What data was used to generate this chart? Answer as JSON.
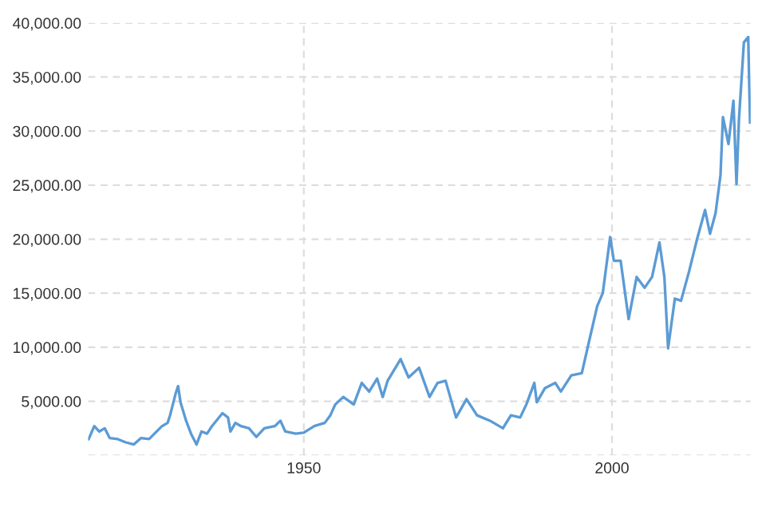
{
  "chart_data": {
    "type": "line",
    "x": [
      1915.1,
      1916,
      1916.8,
      1917.7,
      1918.5,
      1919.8,
      1921.1,
      1922.4,
      1923.6,
      1924.9,
      1927,
      1927.9,
      1928.3,
      1929.2,
      1929.6,
      1930,
      1930.9,
      1931.7,
      1932.6,
      1933.4,
      1934.3,
      1935.1,
      1936.8,
      1937.7,
      1938.1,
      1938.9,
      1939.8,
      1941.1,
      1942.3,
      1943.6,
      1945.3,
      1946.2,
      1947,
      1948.7,
      1950,
      1951.7,
      1953.4,
      1954.3,
      1955.1,
      1956.4,
      1958.1,
      1959.4,
      1960.6,
      1961.9,
      1962.8,
      1963.6,
      1965.7,
      1967,
      1968.7,
      1970.4,
      1971.7,
      1973,
      1974.7,
      1976.4,
      1978.1,
      1980.2,
      1982.3,
      1983.6,
      1985.1,
      1986.1,
      1987.4,
      1987.8,
      1989.1,
      1990.8,
      1991.7,
      1993.4,
      1995.1,
      1996.3,
      1997.6,
      1998.5,
      1999.7,
      2000.3,
      2001.4,
      2002.7,
      2004,
      2005.3,
      2006.5,
      2007.7,
      2008.5,
      2009.1,
      2010.2,
      2011.2,
      2012.5,
      2013.8,
      2015.1,
      2015.9,
      2016.8,
      2017.6,
      2018.0,
      2018.9,
      2019.7,
      2020.2,
      2020.6,
      2021.4,
      2022.1,
      2022.4
    ],
    "series": [
      {
        "color": "#5b9bd5",
        "values": [
          1500,
          2700,
          2200,
          2500,
          1600,
          1500,
          1200,
          1000,
          1600,
          1500,
          2700,
          3000,
          3700,
          5700,
          6400,
          4900,
          3200,
          2000,
          1000,
          2200,
          2000,
          2700,
          3900,
          3500,
          2200,
          3000,
          2700,
          2500,
          1700,
          2500,
          2700,
          3200,
          2200,
          2000,
          2100,
          2700,
          3000,
          3700,
          4700,
          5400,
          4700,
          6700,
          5900,
          7100,
          5400,
          6900,
          8900,
          7200,
          8100,
          5400,
          6700,
          6900,
          3500,
          5200,
          3700,
          3200,
          2500,
          3700,
          3500,
          4700,
          6700,
          4900,
          6200,
          6700,
          5900,
          7400,
          7600,
          10600,
          13800,
          15000,
          20200,
          18000,
          18000,
          12600,
          16500,
          15500,
          16500,
          19700,
          16500,
          9900,
          14500,
          14300,
          17000,
          20000,
          22700,
          20500,
          22400,
          25900,
          31300,
          28800,
          32800,
          25100,
          31100,
          38200,
          38700,
          30800
        ]
      }
    ],
    "xlim": [
      1915,
      2022.5
    ],
    "xticks": [
      1950,
      2000
    ],
    "ylim": [
      0,
      40000
    ],
    "yticks": [
      {
        "value": 0,
        "label": null
      },
      {
        "value": 5000,
        "label": "5,000.00"
      },
      {
        "value": 10000,
        "label": "10,000.00"
      },
      {
        "value": 15000,
        "label": "15,000.00"
      },
      {
        "value": 20000,
        "label": "20,000.00"
      },
      {
        "value": 25000,
        "label": "25,000.00"
      },
      {
        "value": 30000,
        "label": "30,000.00"
      },
      {
        "value": 35000,
        "label": "35,000.00"
      },
      {
        "value": 40000,
        "label": "40,000.00"
      }
    ],
    "grid": true,
    "marker": "none",
    "line_style": "solid"
  }
}
